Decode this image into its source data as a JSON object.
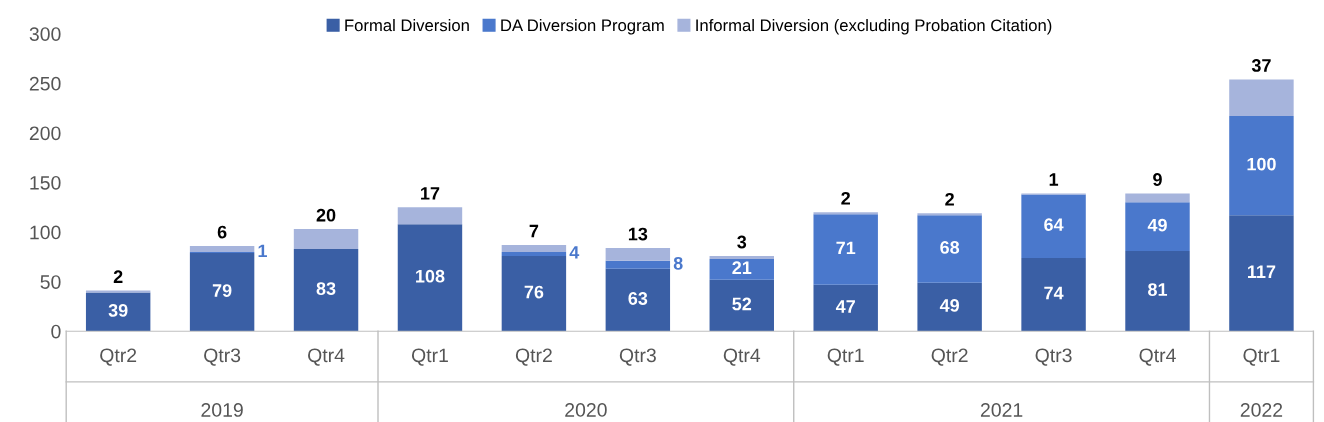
{
  "chart_data": {
    "type": "bar",
    "stacked": true,
    "categories": [
      "Qtr2",
      "Qtr3",
      "Qtr4",
      "Qtr1",
      "Qtr2",
      "Qtr3",
      "Qtr4",
      "Qtr1",
      "Qtr2",
      "Qtr3",
      "Qtr4",
      "Qtr1"
    ],
    "series": [
      {
        "name": "Formal Diversion",
        "color": "#3a5fa5",
        "values": [
          39,
          79,
          83,
          108,
          76,
          63,
          52,
          47,
          49,
          74,
          81,
          117
        ]
      },
      {
        "name": "DA Diversion Program",
        "color": "#4a78cc",
        "values": [
          0,
          1,
          0,
          0,
          4,
          8,
          21,
          71,
          68,
          64,
          49,
          100
        ],
        "value_labels": [
          null,
          "1",
          null,
          null,
          "4",
          "8",
          "21",
          "71",
          "68",
          "64",
          "49",
          "100"
        ]
      },
      {
        "name": "Informal Diversion (excluding Probation Citation)",
        "color": "#a6b4dc",
        "values": [
          2,
          6,
          20,
          17,
          7,
          13,
          3,
          2,
          2,
          1,
          9,
          37
        ]
      }
    ],
    "annotations": [
      "2019",
      "2020",
      "2021",
      "2022"
    ],
    "data_labels": true,
    "ylim": [
      0,
      300
    ],
    "yticks": [
      0,
      50,
      100,
      150,
      200,
      250,
      300
    ],
    "grid": false,
    "legend": "top"
  }
}
